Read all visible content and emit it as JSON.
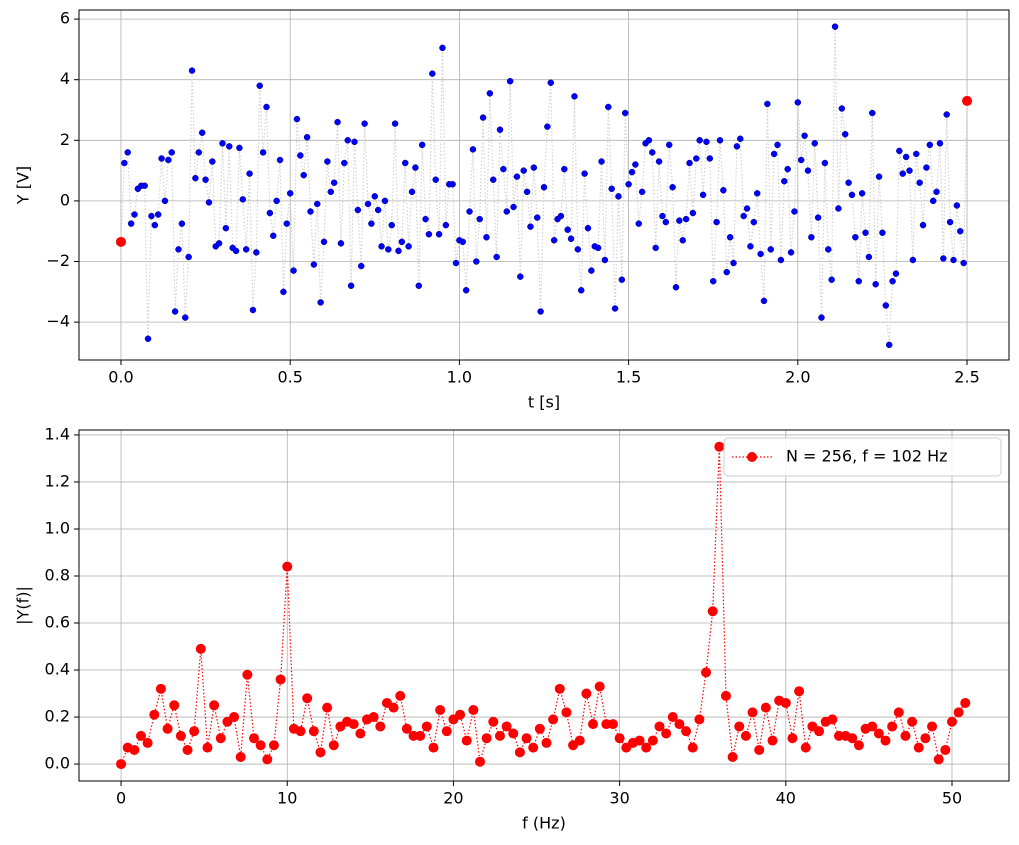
{
  "chart_data": [
    {
      "type": "line",
      "xlabel": "t [s]",
      "ylabel": "Y [V]",
      "xlim": [
        -0.124,
        2.624
      ],
      "ylim": [
        -5.25,
        6.3
      ],
      "xticks": [
        {
          "value": 0,
          "label": "0.0"
        },
        0.5,
        {
          "value": 1,
          "label": "1.0"
        },
        1.5,
        {
          "value": 2,
          "label": "2.0"
        },
        2.5
      ],
      "yticks": [
        {
          "value": -4,
          "label": "−4"
        },
        {
          "value": -2,
          "label": "−2"
        },
        0,
        2,
        4,
        6
      ],
      "grid": true,
      "series": [
        {
          "color": "blue",
          "line_color": "lightgray",
          "x": [
            0,
            0.01,
            0.02,
            0.03,
            0.04,
            0.05,
            0.06,
            0.07,
            0.08,
            0.09,
            0.1,
            0.11,
            0.12,
            0.13,
            0.14,
            0.15,
            0.16,
            0.17,
            0.18,
            0.19,
            0.2,
            0.21,
            0.22,
            0.23,
            0.24,
            0.25,
            0.26,
            0.27,
            0.28,
            0.29,
            0.3,
            0.31,
            0.32,
            0.33,
            0.34,
            0.35,
            0.36,
            0.37,
            0.38,
            0.39,
            0.4,
            0.41,
            0.42,
            0.43,
            0.44,
            0.45,
            0.46,
            0.47,
            0.48,
            0.49,
            0.5,
            0.51,
            0.52,
            0.53,
            0.54,
            0.55,
            0.56,
            0.57,
            0.58,
            0.59,
            0.6,
            0.61,
            0.62,
            0.63,
            0.64,
            0.65,
            0.66,
            0.67,
            0.68,
            0.69,
            0.7,
            0.71,
            0.72,
            0.73,
            0.74,
            0.75,
            0.76,
            0.77,
            0.78,
            0.79,
            0.8,
            0.81,
            0.82,
            0.83,
            0.84,
            0.85,
            0.86,
            0.87,
            0.88,
            0.89,
            0.9,
            0.91,
            0.92,
            0.93,
            0.94,
            0.95,
            0.96,
            0.97,
            0.98,
            0.99,
            1,
            1.01,
            1.02,
            1.03,
            1.04,
            1.05,
            1.06,
            1.07,
            1.08,
            1.09,
            1.1,
            1.11,
            1.12,
            1.13,
            1.14,
            1.15,
            1.16,
            1.17,
            1.18,
            1.19,
            1.2,
            1.21,
            1.22,
            1.23,
            1.24,
            1.25,
            1.26,
            1.27,
            1.28,
            1.29,
            1.3,
            1.31,
            1.32,
            1.33,
            1.34,
            1.35,
            1.36,
            1.37,
            1.38,
            1.39,
            1.4,
            1.41,
            1.42,
            1.43,
            1.44,
            1.45,
            1.46,
            1.47,
            1.48,
            1.49,
            1.5,
            1.51,
            1.52,
            1.53,
            1.54,
            1.55,
            1.56,
            1.57,
            1.58,
            1.59,
            1.6,
            1.61,
            1.62,
            1.63,
            1.64,
            1.65,
            1.66,
            1.67,
            1.68,
            1.69,
            1.7,
            1.71,
            1.72,
            1.73,
            1.74,
            1.75,
            1.76,
            1.77,
            1.78,
            1.79,
            1.8,
            1.81,
            1.82,
            1.83,
            1.84,
            1.85,
            1.86,
            1.87,
            1.88,
            1.89,
            1.9,
            1.91,
            1.92,
            1.93,
            1.94,
            1.95,
            1.96,
            1.97,
            1.98,
            1.99,
            2,
            2.01,
            2.02,
            2.03,
            2.04,
            2.05,
            2.06,
            2.07,
            2.08,
            2.09,
            2.1,
            2.11,
            2.12,
            2.13,
            2.14,
            2.15,
            2.16,
            2.17,
            2.18,
            2.19,
            2.2,
            2.21,
            2.22,
            2.23,
            2.24,
            2.25,
            2.26,
            2.27,
            2.28,
            2.29,
            2.3,
            2.31,
            2.32,
            2.33,
            2.34,
            2.35,
            2.36,
            2.37,
            2.38,
            2.39,
            2.4,
            2.41,
            2.42,
            2.43,
            2.44,
            2.45,
            2.46,
            2.47,
            2.48,
            2.49,
            2.5
          ],
          "values": [
            -1.35,
            1.25,
            1.6,
            -0.75,
            -0.45,
            0.4,
            0.5,
            0.5,
            -4.55,
            -0.5,
            -0.8,
            -0.45,
            1.4,
            0.0,
            1.35,
            1.6,
            -3.65,
            -1.6,
            -0.75,
            -3.85,
            -1.85,
            4.3,
            0.75,
            1.6,
            2.25,
            0.7,
            -0.05,
            1.3,
            -1.5,
            -1.4,
            1.9,
            -0.9,
            1.8,
            -1.55,
            -1.65,
            1.75,
            0.05,
            -1.6,
            0.9,
            -3.6,
            -1.7,
            3.8,
            1.6,
            3.1,
            -0.4,
            -1.15,
            0.0,
            1.35,
            -3.0,
            -0.75,
            0.25,
            -2.3,
            2.7,
            1.5,
            0.85,
            2.1,
            -0.35,
            -2.1,
            -0.1,
            -3.35,
            -1.35,
            1.3,
            0.3,
            0.6,
            2.6,
            -1.4,
            1.25,
            2.0,
            -2.8,
            1.95,
            -0.3,
            -2.15,
            2.55,
            -0.1,
            -0.75,
            0.15,
            -0.3,
            -1.5,
            0.0,
            -1.6,
            -0.8,
            2.55,
            -1.65,
            -1.35,
            1.25,
            -1.5,
            0.3,
            1.1,
            -2.8,
            1.85,
            -0.6,
            -1.1,
            4.2,
            0.7,
            -1.1,
            5.05,
            -0.8,
            0.55,
            0.55,
            -2.05,
            -1.3,
            -1.35,
            -2.95,
            -0.35,
            1.7,
            -2.0,
            -0.6,
            2.75,
            -1.2,
            3.55,
            0.7,
            -1.85,
            2.35,
            1.05,
            -0.35,
            3.95,
            -0.2,
            0.8,
            -2.5,
            1.0,
            0.3,
            -0.85,
            1.1,
            -0.55,
            -3.65,
            0.45,
            2.45,
            3.9,
            -1.3,
            -0.6,
            -0.5,
            1.05,
            -0.95,
            -1.25,
            3.45,
            -1.6,
            -2.95,
            0.9,
            -0.9,
            -2.3,
            -1.5,
            -1.55,
            1.3,
            -1.95,
            3.1,
            0.4,
            -3.55,
            0.15,
            -2.6,
            2.9,
            0.55,
            0.95,
            1.2,
            -0.75,
            0.3,
            1.9,
            2.0,
            1.6,
            -1.55,
            1.3,
            -0.5,
            -0.7,
            1.85,
            0.45,
            -2.85,
            -0.65,
            -1.3,
            -0.6,
            1.25,
            -0.4,
            1.4,
            2.0,
            0.2,
            1.95,
            1.4,
            -2.65,
            -0.7,
            2.0,
            0.35,
            -2.35,
            -1.2,
            -2.05,
            1.8,
            2.05,
            -0.5,
            -0.25,
            -1.5,
            -0.7,
            0.25,
            -1.75,
            -3.3,
            3.2,
            -1.6,
            1.55,
            1.85,
            -1.95,
            0.65,
            1.05,
            -1.7,
            -0.35,
            3.25,
            1.35,
            2.15,
            1.0,
            -1.2,
            1.9,
            -0.55,
            -3.85,
            1.25,
            -1.6,
            -2.6,
            5.75,
            -0.25,
            3.05,
            2.2,
            0.6,
            0.2,
            -1.2,
            -2.65,
            0.25,
            -1.05,
            -1.85,
            2.9,
            -2.75,
            0.8,
            -1.05,
            -3.45,
            -4.75,
            -2.65,
            -2.4,
            1.65,
            0.9,
            1.45,
            1.0,
            -1.95,
            1.55,
            0.6,
            -0.8,
            1.1,
            1.85,
            0.0,
            0.3,
            1.9,
            -1.9,
            2.85,
            -0.7,
            -1.95,
            -0.15,
            -1.0,
            -2.05,
            3.3
          ]
        },
        {
          "color": "red",
          "line": false,
          "x": [
            0,
            2.5
          ],
          "values": [
            -1.35,
            3.3
          ]
        }
      ]
    },
    {
      "type": "line",
      "xlabel": "f (Hz)",
      "ylabel": "|Y(f)|",
      "xlim": [
        -2.53,
        53.43
      ],
      "ylim": [
        -0.072,
        1.421
      ],
      "xticks": [
        0,
        10,
        20,
        30,
        40,
        50
      ],
      "yticks": [
        {
          "value": 0,
          "label": "0.0"
        },
        {
          "value": 0.2,
          "label": "0.2"
        },
        {
          "value": 0.4,
          "label": "0.4"
        },
        {
          "value": 0.6,
          "label": "0.6"
        },
        {
          "value": 0.8,
          "label": "0.8"
        },
        {
          "value": 1.0,
          "label": "1.0"
        },
        {
          "value": 1.2,
          "label": "1.2"
        },
        {
          "value": 1.4,
          "label": "1.4"
        }
      ],
      "grid": true,
      "legend": "upper right",
      "series": [
        {
          "name": "N = 256, f = 102 Hz",
          "color": "red",
          "line_color": "red",
          "x": [
            0,
            0.4,
            0.8,
            1.2,
            1.6,
            2,
            2.4,
            2.8,
            3.2,
            3.6,
            4,
            4.4,
            4.8,
            5.2,
            5.6,
            6,
            6.4,
            6.8,
            7.2,
            7.6,
            8,
            8.4,
            8.8,
            9.2,
            9.6,
            10,
            10.4,
            10.8,
            11.2,
            11.6,
            12,
            12.4,
            12.8,
            13.2,
            13.6,
            14,
            14.4,
            14.8,
            15.2,
            15.6,
            16,
            16.4,
            16.8,
            17.2,
            17.6,
            18,
            18.4,
            18.8,
            19.2,
            19.6,
            20,
            20.4,
            20.8,
            21.2,
            21.6,
            22,
            22.4,
            22.8,
            23.2,
            23.6,
            24,
            24.4,
            24.8,
            25.2,
            25.6,
            26,
            26.4,
            26.8,
            27.2,
            27.6,
            28,
            28.4,
            28.8,
            29.2,
            29.6,
            30,
            30.4,
            30.8,
            31.2,
            31.6,
            32,
            32.4,
            32.8,
            33.2,
            33.6,
            34,
            34.4,
            34.8,
            35.2,
            35.6,
            36,
            36.4,
            36.8,
            37.2,
            37.6,
            38,
            38.4,
            38.8,
            39.2,
            39.6,
            40,
            40.4,
            40.8,
            41.2,
            41.6,
            42,
            42.4,
            42.8,
            43.2,
            43.6,
            44,
            44.4,
            44.8,
            45.2,
            45.6,
            46,
            46.4,
            46.8,
            47.2,
            47.6,
            48,
            48.4,
            48.8,
            49.2,
            49.6,
            50,
            50.4,
            50.8
          ],
          "values": [
            0,
            0.07,
            0.06,
            0.12,
            0.09,
            0.21,
            0.32,
            0.15,
            0.25,
            0.12,
            0.06,
            0.14,
            0.49,
            0.07,
            0.25,
            0.11,
            0.18,
            0.2,
            0.03,
            0.38,
            0.11,
            0.08,
            0.02,
            0.08,
            0.36,
            0.84,
            0.15,
            0.14,
            0.28,
            0.14,
            0.05,
            0.24,
            0.08,
            0.16,
            0.18,
            0.17,
            0.13,
            0.19,
            0.2,
            0.16,
            0.26,
            0.24,
            0.29,
            0.15,
            0.12,
            0.12,
            0.16,
            0.07,
            0.23,
            0.14,
            0.19,
            0.21,
            0.1,
            0.23,
            0.01,
            0.11,
            0.18,
            0.12,
            0.16,
            0.13,
            0.05,
            0.11,
            0.07,
            0.15,
            0.09,
            0.19,
            0.32,
            0.22,
            0.08,
            0.1,
            0.3,
            0.17,
            0.33,
            0.17,
            0.17,
            0.11,
            0.07,
            0.09,
            0.1,
            0.07,
            0.1,
            0.16,
            0.13,
            0.2,
            0.17,
            0.14,
            0.07,
            0.19,
            0.39,
            0.65,
            1.35,
            0.29,
            0.03,
            0.16,
            0.12,
            0.22,
            0.06,
            0.24,
            0.1,
            0.27,
            0.26,
            0.11,
            0.31,
            0.07,
            0.16,
            0.14,
            0.18,
            0.19,
            0.12,
            0.12,
            0.11,
            0.08,
            0.15,
            0.16,
            0.13,
            0.1,
            0.16,
            0.22,
            0.12,
            0.18,
            0.07,
            0.11,
            0.16,
            0.02,
            0.06,
            0.18,
            0.22,
            0.26
          ]
        }
      ]
    }
  ]
}
